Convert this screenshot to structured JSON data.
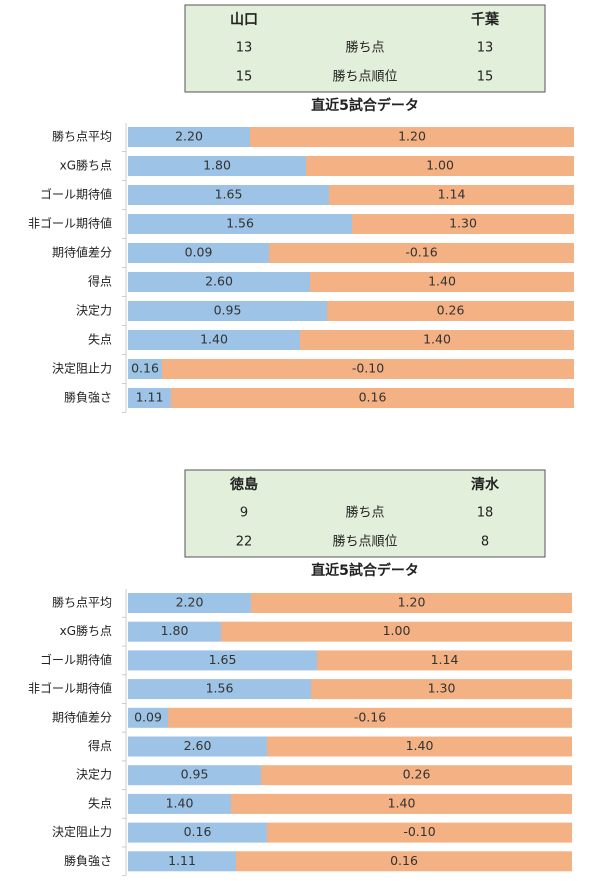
{
  "panels": [
    {
      "header": {
        "home": "山口",
        "away": "千葉",
        "rows": [
          {
            "home": 13,
            "label": "勝ち点",
            "away": 13
          },
          {
            "home": 15,
            "label": "勝ち点順位",
            "away": 15
          }
        ]
      },
      "title": "直近5試合データ",
      "metrics": [
        {
          "label": "勝ち点平均",
          "home": "2.20",
          "away": "1.20"
        },
        {
          "label": "xG勝ち点",
          "home": "1.80",
          "away": "1.00"
        },
        {
          "label": "ゴール期待値",
          "home": "1.65",
          "away": "1.14"
        },
        {
          "label": "非ゴール期待値",
          "home": "1.56",
          "away": "1.30"
        },
        {
          "label": "期待値差分",
          "home": "0.09",
          "away": "-0.16"
        },
        {
          "label": "得点",
          "home": "2.60",
          "away": "1.40"
        },
        {
          "label": "決定力",
          "home": "0.95",
          "away": "0.26"
        },
        {
          "label": "失点",
          "home": "1.40",
          "away": "1.40"
        },
        {
          "label": "決定阻止力",
          "home": "0.16",
          "away": "-0.10"
        },
        {
          "label": "勝負強さ",
          "home": "1.11",
          "away": "0.16"
        }
      ]
    },
    {
      "header": {
        "home": "徳島",
        "away": "清水",
        "rows": [
          {
            "home": 9,
            "label": "勝ち点",
            "away": 18
          },
          {
            "home": 22,
            "label": "勝ち点順位",
            "away": 8
          }
        ]
      },
      "title": "直近5試合データ",
      "metrics": [
        {
          "label": "勝ち点平均",
          "home": "2.20",
          "away": "1.20"
        },
        {
          "label": "xG勝ち点",
          "home": "1.80",
          "away": "1.00"
        },
        {
          "label": "ゴール期待値",
          "home": "1.65",
          "away": "1.14"
        },
        {
          "label": "非ゴール期待値",
          "home": "1.56",
          "away": "1.30"
        },
        {
          "label": "期待値差分",
          "home": "0.09",
          "away": "-0.16"
        },
        {
          "label": "得点",
          "home": "2.60",
          "away": "1.40"
        },
        {
          "label": "決定力",
          "home": "0.95",
          "away": "0.26"
        },
        {
          "label": "失点",
          "home": "1.40",
          "away": "1.40"
        },
        {
          "label": "決定阻止力",
          "home": "0.16",
          "away": "-0.10"
        },
        {
          "label": "勝負強さ",
          "home": "1.11",
          "away": "0.16"
        }
      ]
    }
  ]
}
